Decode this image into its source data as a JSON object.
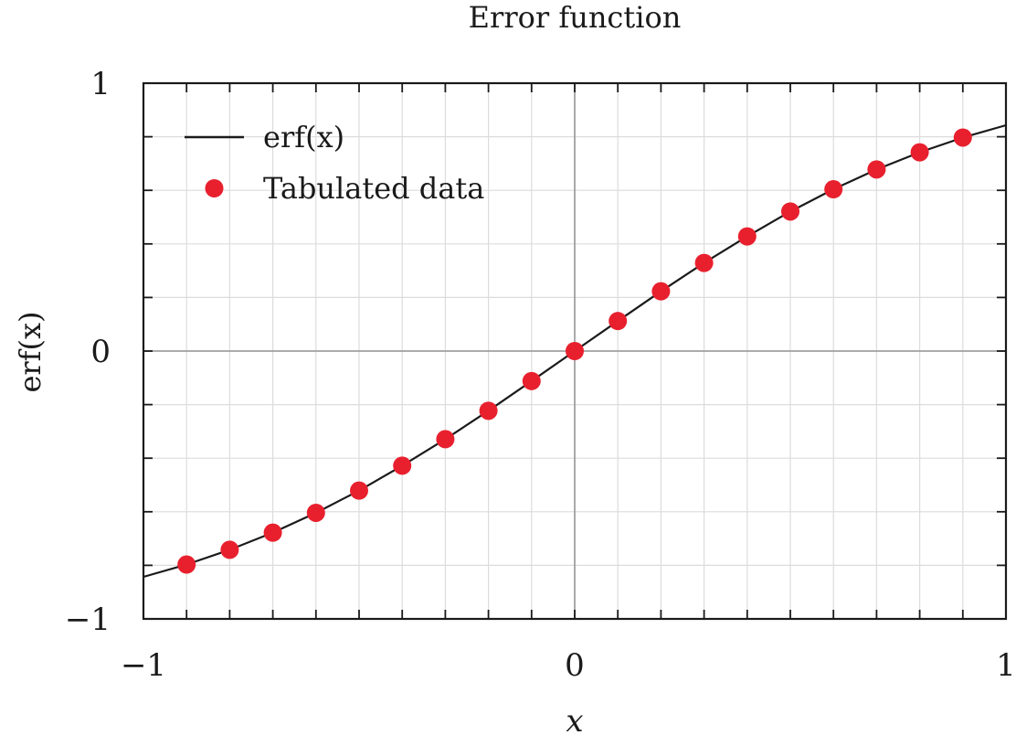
{
  "chart_data": {
    "type": "line",
    "title": "Error function",
    "xlabel": "x",
    "ylabel": "erf(x)",
    "xlim": [
      -1,
      1
    ],
    "ylim": [
      -1,
      1
    ],
    "grid": true,
    "legend_position": "top-left",
    "x_ticks": [
      -1,
      0,
      1
    ],
    "y_ticks": [
      -1,
      0,
      1
    ],
    "x_tick_labels": [
      "−1",
      "0",
      "1"
    ],
    "y_tick_labels": [
      "−1",
      "0",
      "1"
    ],
    "series": [
      {
        "name": "erf(x)",
        "kind": "line",
        "color": "#1a1a1a",
        "x": [
          -1.0,
          -0.9,
          -0.8,
          -0.7,
          -0.6,
          -0.5,
          -0.4,
          -0.3,
          -0.2,
          -0.1,
          0.0,
          0.1,
          0.2,
          0.3,
          0.4,
          0.5,
          0.6,
          0.7,
          0.8,
          0.9,
          1.0
        ],
        "y": [
          -0.843,
          -0.797,
          -0.742,
          -0.678,
          -0.604,
          -0.521,
          -0.428,
          -0.329,
          -0.223,
          -0.112,
          0.0,
          0.112,
          0.223,
          0.329,
          0.428,
          0.521,
          0.604,
          0.678,
          0.742,
          0.797,
          0.843
        ]
      },
      {
        "name": "Tabulated data",
        "kind": "scatter",
        "color": "#e8202e",
        "x": [
          -0.9,
          -0.8,
          -0.7,
          -0.6,
          -0.5,
          -0.4,
          -0.3,
          -0.2,
          -0.1,
          0.0,
          0.1,
          0.2,
          0.3,
          0.4,
          0.5,
          0.6,
          0.7,
          0.8,
          0.9
        ],
        "y": [
          -0.797,
          -0.742,
          -0.678,
          -0.604,
          -0.521,
          -0.428,
          -0.329,
          -0.223,
          -0.112,
          0.0,
          0.112,
          0.223,
          0.329,
          0.428,
          0.521,
          0.604,
          0.678,
          0.742,
          0.797
        ]
      }
    ]
  }
}
